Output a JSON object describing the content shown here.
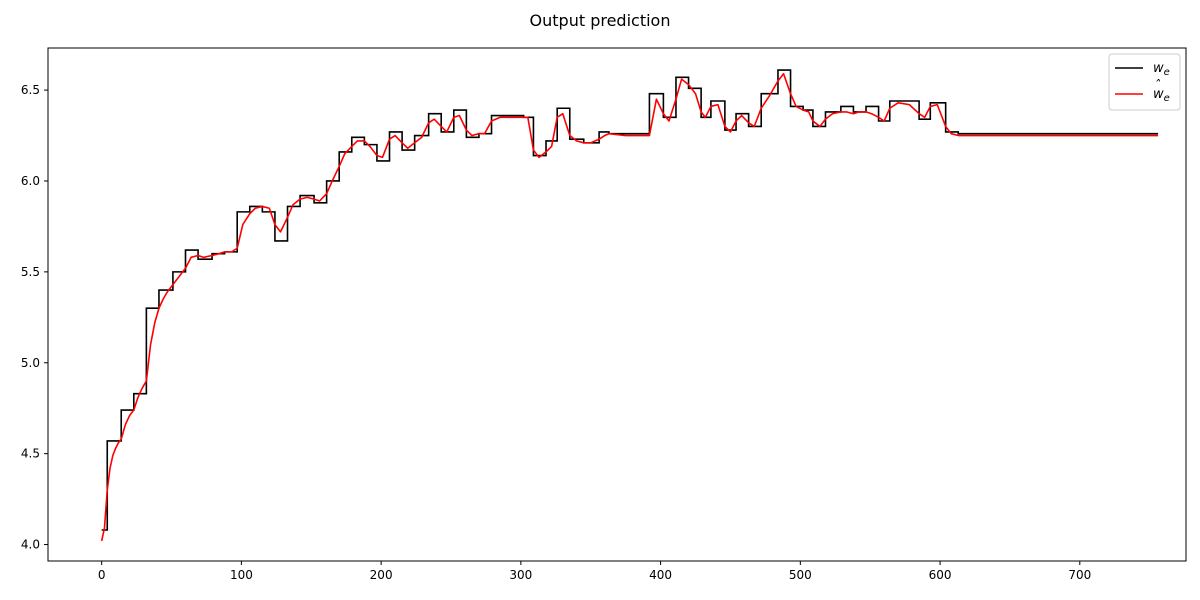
{
  "chart_data": {
    "type": "line",
    "title": "Output prediction",
    "xlabel": "",
    "ylabel": "",
    "xlim": [
      -38.4,
      776
    ],
    "ylim": [
      3.9095,
      6.7315
    ],
    "xticks": [
      0,
      100,
      200,
      300,
      400,
      500,
      600,
      700
    ],
    "xtick_labels": [
      "0",
      "100",
      "200",
      "300",
      "400",
      "500",
      "600",
      "700"
    ],
    "yticks": [
      4.0,
      4.5,
      5.0,
      5.5,
      6.0,
      6.5
    ],
    "ytick_labels": [
      "4.0",
      "4.5",
      "5.0",
      "5.5",
      "6.0",
      "6.5"
    ],
    "grid": false,
    "legend_position": "top-right",
    "series": [
      {
        "name": "w_e",
        "label_base": "w",
        "label_sub": "e",
        "label_hat": false,
        "style": "step",
        "color": "#000000",
        "x_end": 756,
        "steps": [
          [
            0,
            4.08
          ],
          [
            4,
            4.57
          ],
          [
            14,
            4.74
          ],
          [
            23,
            4.83
          ],
          [
            32,
            5.3
          ],
          [
            41,
            5.4
          ],
          [
            51,
            5.5
          ],
          [
            60,
            5.62
          ],
          [
            69,
            5.57
          ],
          [
            79,
            5.6
          ],
          [
            88,
            5.61
          ],
          [
            97,
            5.83
          ],
          [
            106,
            5.86
          ],
          [
            115,
            5.83
          ],
          [
            124,
            5.67
          ],
          [
            133,
            5.86
          ],
          [
            142,
            5.92
          ],
          [
            152,
            5.88
          ],
          [
            161,
            6.0
          ],
          [
            170,
            6.16
          ],
          [
            179,
            6.24
          ],
          [
            188,
            6.2
          ],
          [
            197,
            6.11
          ],
          [
            206,
            6.27
          ],
          [
            215,
            6.17
          ],
          [
            224,
            6.25
          ],
          [
            234,
            6.37
          ],
          [
            243,
            6.27
          ],
          [
            252,
            6.39
          ],
          [
            261,
            6.24
          ],
          [
            270,
            6.26
          ],
          [
            279,
            6.36
          ],
          [
            302,
            6.35
          ],
          [
            309,
            6.14
          ],
          [
            318,
            6.22
          ],
          [
            326,
            6.4
          ],
          [
            335,
            6.23
          ],
          [
            345,
            6.21
          ],
          [
            356,
            6.27
          ],
          [
            363,
            6.26
          ],
          [
            392,
            6.48
          ],
          [
            402,
            6.35
          ],
          [
            411,
            6.57
          ],
          [
            420,
            6.51
          ],
          [
            429,
            6.35
          ],
          [
            436,
            6.44
          ],
          [
            446,
            6.28
          ],
          [
            454,
            6.37
          ],
          [
            463,
            6.3
          ],
          [
            472,
            6.48
          ],
          [
            484,
            6.61
          ],
          [
            493,
            6.41
          ],
          [
            502,
            6.39
          ],
          [
            509,
            6.3
          ],
          [
            518,
            6.38
          ],
          [
            529,
            6.41
          ],
          [
            538,
            6.38
          ],
          [
            547,
            6.41
          ],
          [
            556,
            6.33
          ],
          [
            564,
            6.44
          ],
          [
            585,
            6.34
          ],
          [
            593,
            6.43
          ],
          [
            604,
            6.27
          ],
          [
            613,
            6.26
          ]
        ]
      },
      {
        "name": "ŵ_e",
        "label_base": "w",
        "label_sub": "e",
        "label_hat": true,
        "style": "smooth",
        "color": "#ff0000",
        "x": [
          0,
          2,
          4,
          6,
          8,
          10,
          12,
          14,
          17,
          20,
          23,
          26,
          29,
          32,
          35,
          38,
          41,
          44,
          47,
          51,
          55,
          60,
          64,
          69,
          73,
          79,
          84,
          88,
          93,
          97,
          101,
          106,
          110,
          115,
          120,
          124,
          128,
          133,
          137,
          142,
          147,
          152,
          156,
          161,
          165,
          170,
          174,
          179,
          183,
          188,
          192,
          197,
          201,
          206,
          210,
          215,
          219,
          224,
          229,
          234,
          238,
          243,
          247,
          252,
          256,
          261,
          265,
          270,
          274,
          279,
          285,
          295,
          302,
          305,
          309,
          313,
          318,
          322,
          326,
          330,
          335,
          340,
          345,
          350,
          356,
          360,
          363,
          375,
          392,
          397,
          402,
          406,
          411,
          415,
          420,
          425,
          429,
          432,
          436,
          441,
          446,
          450,
          454,
          458,
          463,
          467,
          472,
          478,
          484,
          488,
          493,
          497,
          502,
          506,
          509,
          514,
          518,
          523,
          529,
          533,
          538,
          542,
          547,
          551,
          556,
          560,
          564,
          570,
          578,
          585,
          589,
          593,
          598,
          604,
          608,
          613,
          620,
          640,
          700,
          756
        ],
        "y": [
          4.02,
          4.09,
          4.3,
          4.42,
          4.49,
          4.53,
          4.56,
          4.58,
          4.66,
          4.71,
          4.74,
          4.81,
          4.86,
          4.9,
          5.1,
          5.22,
          5.3,
          5.35,
          5.39,
          5.43,
          5.47,
          5.52,
          5.58,
          5.59,
          5.58,
          5.59,
          5.6,
          5.61,
          5.61,
          5.63,
          5.76,
          5.82,
          5.85,
          5.86,
          5.85,
          5.76,
          5.72,
          5.8,
          5.87,
          5.9,
          5.91,
          5.9,
          5.89,
          5.93,
          6.0,
          6.08,
          6.15,
          6.19,
          6.22,
          6.22,
          6.19,
          6.14,
          6.13,
          6.23,
          6.25,
          6.21,
          6.18,
          6.21,
          6.24,
          6.32,
          6.34,
          6.3,
          6.27,
          6.35,
          6.36,
          6.28,
          6.25,
          6.26,
          6.26,
          6.33,
          6.35,
          6.35,
          6.35,
          6.35,
          6.17,
          6.13,
          6.16,
          6.19,
          6.35,
          6.37,
          6.25,
          6.22,
          6.21,
          6.21,
          6.23,
          6.25,
          6.26,
          6.25,
          6.25,
          6.45,
          6.37,
          6.33,
          6.45,
          6.56,
          6.53,
          6.48,
          6.38,
          6.35,
          6.41,
          6.42,
          6.3,
          6.27,
          6.33,
          6.36,
          6.32,
          6.3,
          6.4,
          6.47,
          6.55,
          6.59,
          6.48,
          6.41,
          6.39,
          6.38,
          6.33,
          6.3,
          6.34,
          6.37,
          6.38,
          6.38,
          6.37,
          6.38,
          6.38,
          6.37,
          6.35,
          6.33,
          6.4,
          6.43,
          6.42,
          6.37,
          6.35,
          6.41,
          6.42,
          6.3,
          6.26,
          6.25,
          6.25,
          6.25,
          6.25,
          6.25
        ]
      }
    ]
  }
}
